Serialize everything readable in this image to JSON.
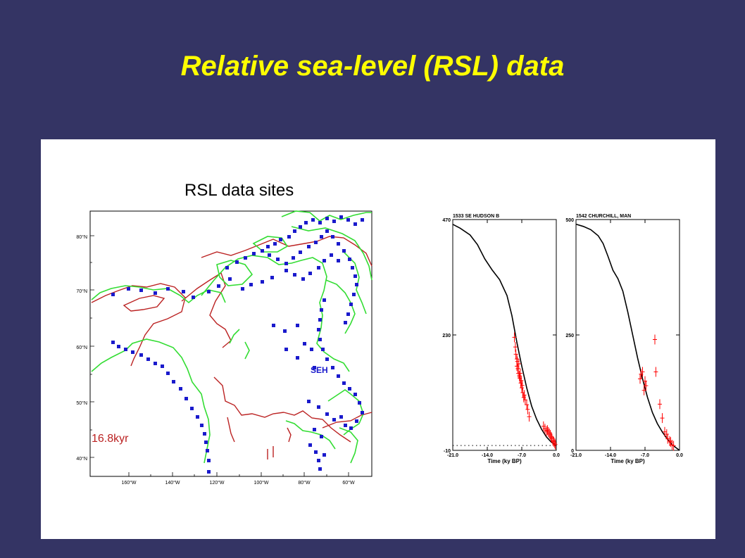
{
  "slide": {
    "title": "Relative sea-level (RSL) data"
  },
  "colors": {
    "background": "#343464",
    "title": "#ffff00",
    "site_marker": "#1a1acc",
    "present_coast": "#33dd33",
    "ice_margin": "#bb2222",
    "observation": "#ff0000",
    "model": "#000000"
  },
  "map": {
    "title": "RSL data sites",
    "time_label": "16.8kyr",
    "site_label": "SEH",
    "lat_ticks": [
      "80°N",
      "70°N",
      "60°N",
      "50°N",
      "40°N"
    ],
    "lon_ticks": [
      "160°W",
      "140°W",
      "120°W",
      "100°W",
      "80°W",
      "60°W"
    ]
  },
  "chart_data": [
    {
      "type": "line",
      "title": "1533 SE HUDSON B",
      "xlabel": "Time (ky BP)",
      "ylabel": "",
      "xlim": [
        -21.0,
        0.0
      ],
      "ylim": [
        -10,
        470
      ],
      "x_ticks": [
        "-21.0",
        "-14.0",
        "-7.0",
        "0.0"
      ],
      "y_ticks": [
        "470",
        "230",
        "-10"
      ],
      "reference_line": 0,
      "series": [
        {
          "kind": "model",
          "x": [
            -21.0,
            -19.5,
            -17.5,
            -16.0,
            -14.5,
            -13.0,
            -11.5,
            -10.0,
            -9.0,
            -8.0,
            -7.0,
            -6.0,
            -5.0,
            -4.0,
            -3.0,
            -2.0,
            -1.0,
            0.0
          ],
          "y": [
            460,
            452,
            438,
            418,
            388,
            365,
            345,
            312,
            270,
            215,
            165,
            120,
            82,
            55,
            34,
            18,
            7,
            0
          ]
        },
        {
          "kind": "observations",
          "x": [
            -8.5,
            -8.3,
            -8.2,
            -8.0,
            -8.0,
            -7.9,
            -7.8,
            -7.7,
            -7.6,
            -7.5,
            -7.4,
            -7.3,
            -7.2,
            -7.1,
            -7.0,
            -6.9,
            -6.8,
            -6.6,
            -6.5,
            -6.3,
            -6.0,
            -5.8,
            -5.5,
            -2.6,
            -2.3,
            -2.0,
            -1.8,
            -1.6,
            -1.4,
            -1.2,
            -1.0,
            -0.9,
            -0.7,
            -0.5,
            -0.3,
            -0.2
          ],
          "y": [
            225,
            205,
            190,
            180,
            165,
            175,
            160,
            150,
            170,
            145,
            140,
            150,
            130,
            135,
            120,
            125,
            110,
            100,
            105,
            95,
            85,
            75,
            60,
            40,
            35,
            30,
            32,
            28,
            25,
            22,
            18,
            15,
            10,
            8,
            5,
            2
          ]
        }
      ]
    },
    {
      "type": "line",
      "title": "1542 CHURCHILL, MAN",
      "xlabel": "Time (ky BP)",
      "ylabel": "",
      "xlim": [
        -21.0,
        0.0
      ],
      "ylim": [
        0,
        500
      ],
      "x_ticks": [
        "-21.0",
        "-14.0",
        "-7.0",
        "0.0"
      ],
      "y_ticks": [
        "500",
        "250",
        "0"
      ],
      "series": [
        {
          "kind": "model",
          "x": [
            -21.0,
            -19.5,
            -18.0,
            -16.5,
            -15.5,
            -14.5,
            -13.5,
            -12.5,
            -11.5,
            -10.5,
            -9.5,
            -8.5,
            -7.5,
            -6.5,
            -5.5,
            -4.5,
            -3.5,
            -2.5,
            -1.5,
            0.0
          ],
          "y": [
            490,
            485,
            478,
            465,
            448,
            420,
            390,
            372,
            345,
            300,
            250,
            200,
            155,
            115,
            82,
            58,
            40,
            25,
            12,
            0
          ]
        },
        {
          "kind": "observations",
          "x": [
            -8.0,
            -7.8,
            -7.5,
            -7.2,
            -7.0,
            -6.8,
            -5.0,
            -4.8,
            -4.0,
            -3.5,
            -3.0,
            -2.6,
            -2.4,
            -2.0,
            -1.8,
            -1.5,
            -1.2
          ],
          "y": [
            155,
            165,
            170,
            130,
            150,
            140,
            240,
            170,
            100,
            70,
            40,
            35,
            25,
            20,
            18,
            12,
            10
          ]
        }
      ]
    }
  ]
}
